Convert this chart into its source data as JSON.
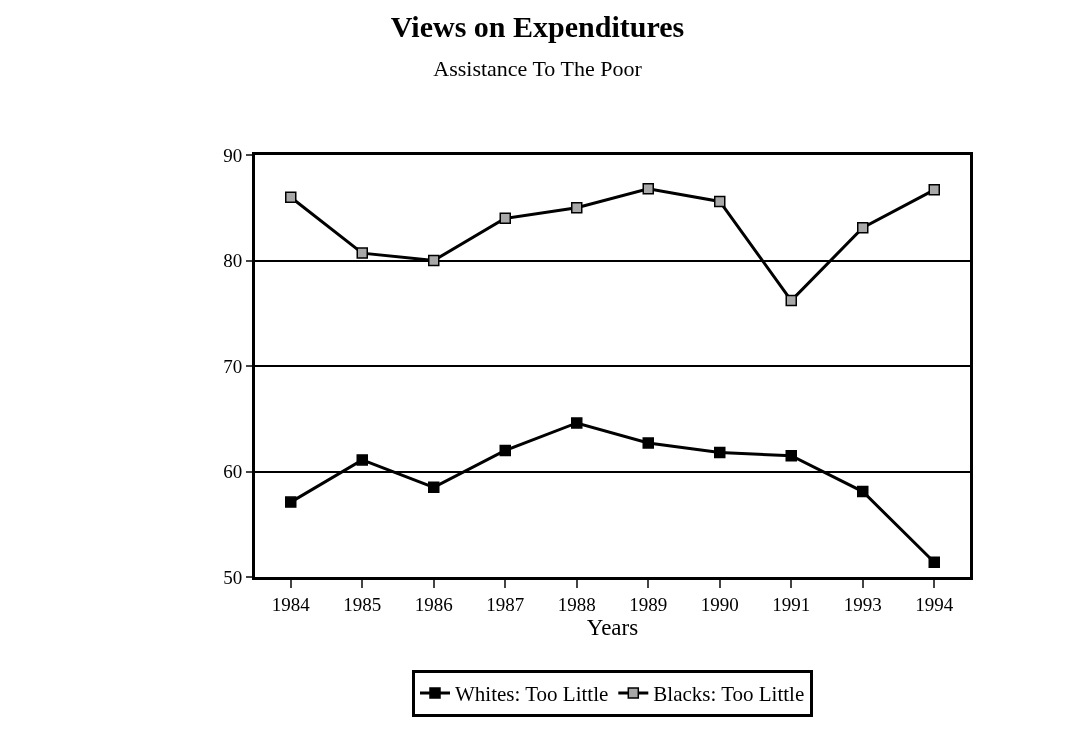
{
  "chart_data": {
    "type": "line",
    "title": "Views on Expenditures",
    "subtitle": "Assistance To The Poor",
    "xlabel": "Years",
    "categories": [
      "1984",
      "1985",
      "1986",
      "1987",
      "1988",
      "1989",
      "1990",
      "1991",
      "1993",
      "1994"
    ],
    "series": [
      {
        "name": "Whites: Too Little",
        "color": "#000000",
        "values": [
          57.1,
          61.1,
          58.5,
          62.0,
          64.6,
          62.7,
          61.8,
          61.5,
          58.1,
          51.4
        ]
      },
      {
        "name": "Blacks: Too Little",
        "color": "#a8a8a8",
        "values": [
          86.0,
          80.7,
          80.0,
          84.0,
          85.0,
          86.8,
          85.6,
          76.2,
          83.1,
          86.7
        ]
      }
    ],
    "ylim": [
      50,
      90
    ],
    "yticks": [
      50,
      60,
      70,
      80,
      90
    ],
    "grid": "y",
    "legend": "bottom",
    "marker": "square",
    "line_style": "solid"
  }
}
